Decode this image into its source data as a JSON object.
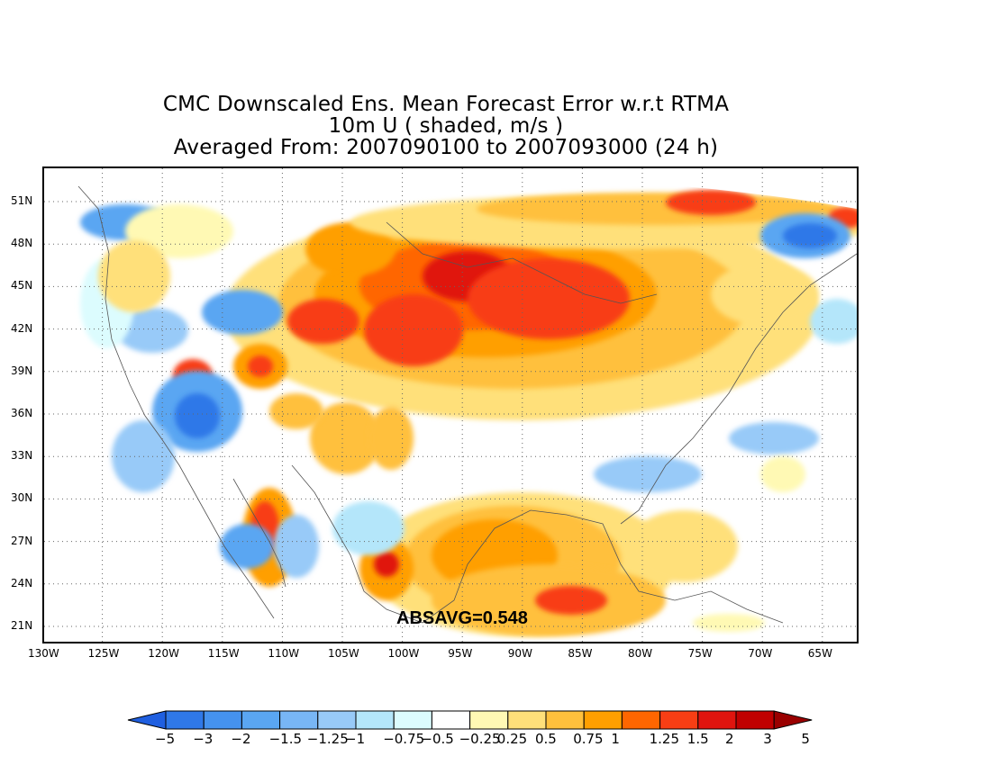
{
  "title": {
    "line1": "CMC Downscaled Ens. Mean Forecast Error w.r.t RTMA",
    "line2": "10m U ( shaded, m/s )",
    "line3": "Averaged From: 2007090100 to 2007093000 (24 h)"
  },
  "annotation": "ABSAVG=0.548",
  "lat_labels": [
    "51N",
    "48N",
    "45N",
    "42N",
    "39N",
    "36N",
    "33N",
    "30N",
    "27N",
    "24N",
    "21N"
  ],
  "lon_labels": [
    "130W",
    "125W",
    "120W",
    "115W",
    "110W",
    "105W",
    "100W",
    "95W",
    "90W",
    "85W",
    "80W",
    "75W",
    "70W",
    "65W"
  ],
  "colorbar": {
    "labels": [
      "−5",
      "−3",
      "−2",
      "−1.5",
      "−1.25",
      "−1",
      "−0.75",
      "−0.5",
      "−0.25",
      "0.25",
      "0.5",
      "0.75",
      "1",
      "1.25",
      "1.5",
      "2",
      "3",
      "5"
    ],
    "colors": [
      "#1f5fe0",
      "#2f78e8",
      "#4592ee",
      "#5aa6f2",
      "#78b6f5",
      "#98caf8",
      "#b4e6fa",
      "#dcfcfe",
      "#ffffff",
      "#fff9b4",
      "#ffe07a",
      "#ffc03c",
      "#ff9f00",
      "#ff6600",
      "#f83e14",
      "#e0140e",
      "#c00000",
      "#9a0000"
    ]
  },
  "map": {
    "lat_range": [
      20,
      52.5
    ],
    "lon_range": [
      -130,
      -61.5
    ],
    "grid": true,
    "colors": {
      "red_dark": "#e0140e",
      "red": "#f83e14",
      "orange_red": "#ff6600",
      "orange": "#ff9f00",
      "light_orange": "#ffc03c",
      "yellow": "#ffe07a",
      "pale_yellow": "#fff9b4",
      "pale_cyan": "#dcfcfe",
      "cyan": "#b4e6fa",
      "light_blue": "#98caf8",
      "blue": "#5aa6f2",
      "dark_blue": "#2f78e8"
    }
  }
}
